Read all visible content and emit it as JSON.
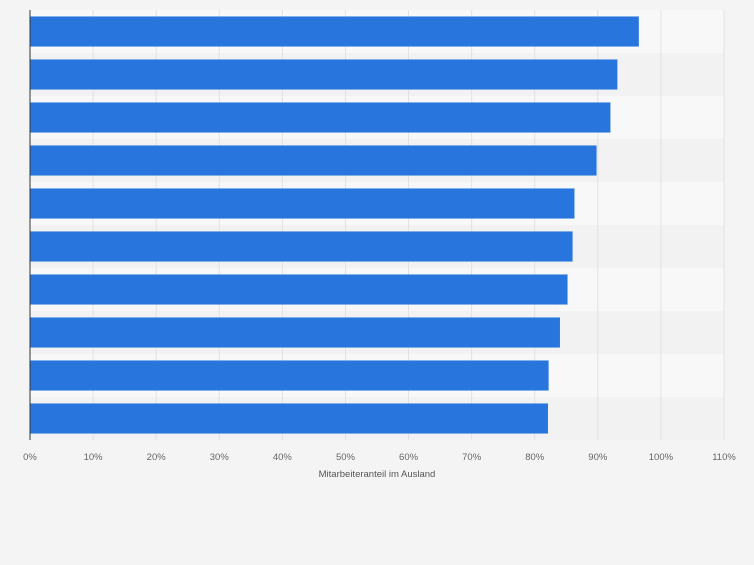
{
  "chart_data": {
    "type": "bar",
    "orientation": "horizontal",
    "title": "",
    "xlabel": "Mitarbeiteranteil im Ausland",
    "ylabel": "",
    "xlim": [
      0,
      110
    ],
    "grid": true,
    "categories": [
      "",
      "",
      "",
      "",
      "",
      "",
      "",
      "",
      "",
      ""
    ],
    "values": [
      96.5,
      93.1,
      92.0,
      89.8,
      86.3,
      86.0,
      85.2,
      84.0,
      82.2,
      82.1
    ],
    "x_ticks": [
      0,
      10,
      20,
      30,
      40,
      50,
      60,
      70,
      80,
      90,
      100,
      110
    ],
    "x_tick_labels": [
      "0%",
      "10%",
      "20%",
      "30%",
      "40%",
      "50%",
      "60%",
      "70%",
      "80%",
      "90%",
      "100%",
      "110%"
    ],
    "colors": {
      "bar": "#2876dd",
      "background": "#f4f4f4",
      "band_light": "#f8f8f8",
      "band_dark": "#f2f2f2",
      "grid": "#e2e2e2",
      "axis": "#333333",
      "tick_text": "#666666"
    }
  }
}
